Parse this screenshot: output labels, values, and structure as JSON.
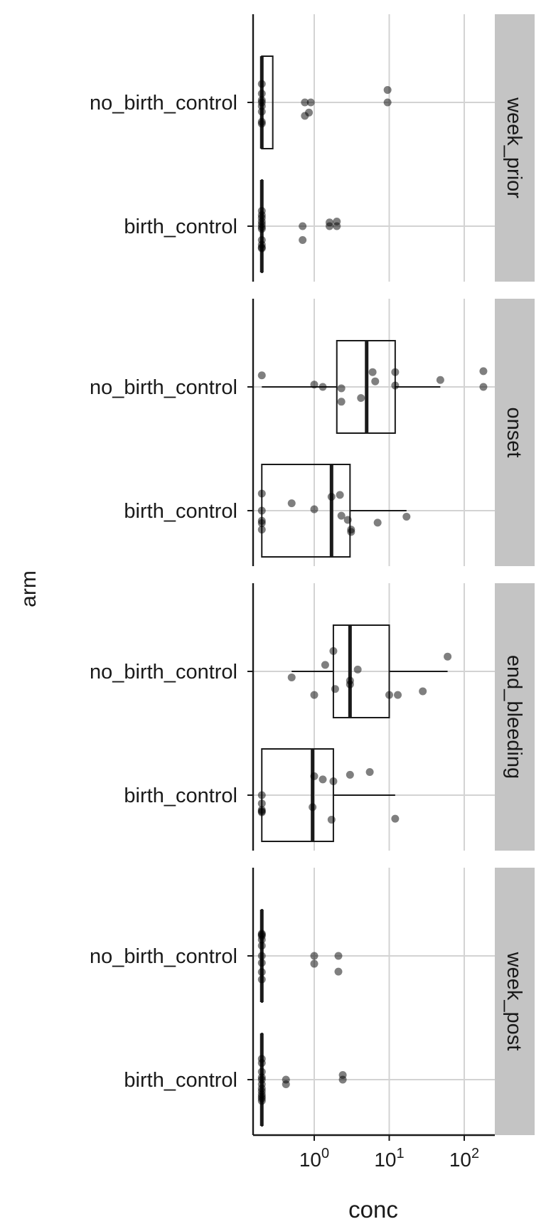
{
  "chart_data": {
    "type": "boxplot",
    "xlabel": "conc",
    "ylabel": "arm",
    "x_scale": "log10",
    "xlim": [
      0.15,
      240
    ],
    "x_ticks": [
      1,
      10,
      100
    ],
    "x_tick_labels": [
      {
        "base": "10",
        "exp": "0"
      },
      {
        "base": "10",
        "exp": "1"
      },
      {
        "base": "10",
        "exp": "2"
      }
    ],
    "categories": [
      "no_birth_control",
      "birth_control"
    ],
    "grid": "major x and y",
    "facets": [
      {
        "label": "week_prior",
        "groups": [
          {
            "arm": "no_birth_control",
            "box": {
              "lower": 0.2,
              "q1": 0.2,
              "median": 0.2,
              "q3": 0.28,
              "upper": 0.28
            },
            "points": [
              {
                "x": 9.5,
                "jitter": 0.27
              },
              {
                "x": 9.5,
                "jitter": 0.0
              },
              {
                "x": 0.75,
                "jitter": 0.0
              },
              {
                "x": 0.9,
                "jitter": 0.0
              },
              {
                "x": 0.85,
                "jitter": -0.22
              },
              {
                "x": 0.75,
                "jitter": -0.29
              },
              {
                "x": 0.2,
                "jitter": 0.4
              },
              {
                "x": 0.2,
                "jitter": 0.19
              },
              {
                "x": 0.2,
                "jitter": 0.05
              },
              {
                "x": 0.2,
                "jitter": 0.0
              },
              {
                "x": 0.2,
                "jitter": -0.08
              },
              {
                "x": 0.2,
                "jitter": -0.2
              },
              {
                "x": 0.2,
                "jitter": -0.42
              },
              {
                "x": 0.2,
                "jitter": -0.46
              }
            ]
          },
          {
            "arm": "birth_control",
            "box": {
              "lower": 0.2,
              "q1": 0.2,
              "median": 0.2,
              "q3": 0.2,
              "upper": 0.2
            },
            "points": [
              {
                "x": 2.0,
                "jitter": 0.1
              },
              {
                "x": 1.6,
                "jitter": 0.08
              },
              {
                "x": 1.6,
                "jitter": 0.0
              },
              {
                "x": 2.0,
                "jitter": 0.0
              },
              {
                "x": 0.7,
                "jitter": 0.0
              },
              {
                "x": 0.7,
                "jitter": -0.3
              },
              {
                "x": 0.2,
                "jitter": 0.33
              },
              {
                "x": 0.2,
                "jitter": 0.24
              },
              {
                "x": 0.2,
                "jitter": 0.18
              },
              {
                "x": 0.2,
                "jitter": 0.1
              },
              {
                "x": 0.2,
                "jitter": 0.04
              },
              {
                "x": 0.2,
                "jitter": -0.02
              },
              {
                "x": 0.2,
                "jitter": -0.06
              },
              {
                "x": 0.2,
                "jitter": -0.3
              },
              {
                "x": 0.2,
                "jitter": -0.4
              },
              {
                "x": 0.2,
                "jitter": -0.46
              },
              {
                "x": 0.2,
                "jitter": -0.48
              }
            ]
          }
        ]
      },
      {
        "label": "onset",
        "groups": [
          {
            "arm": "no_birth_control",
            "box": {
              "lower": 0.2,
              "q1": 2.0,
              "median": 5.0,
              "q3": 12.0,
              "upper": 48.0
            },
            "points": [
              {
                "x": 0.2,
                "jitter": 0.25
              },
              {
                "x": 1.0,
                "jitter": 0.05
              },
              {
                "x": 1.3,
                "jitter": 0.0
              },
              {
                "x": 2.3,
                "jitter": -0.03
              },
              {
                "x": 2.3,
                "jitter": -0.32
              },
              {
                "x": 4.2,
                "jitter": -0.24
              },
              {
                "x": 6.0,
                "jitter": 0.32
              },
              {
                "x": 6.5,
                "jitter": 0.12
              },
              {
                "x": 12.0,
                "jitter": 0.32
              },
              {
                "x": 12.0,
                "jitter": 0.03
              },
              {
                "x": 48.0,
                "jitter": 0.15
              },
              {
                "x": 180.0,
                "jitter": 0.34
              },
              {
                "x": 180.0,
                "jitter": 0.0
              }
            ]
          },
          {
            "arm": "birth_control",
            "box": {
              "lower": 0.2,
              "q1": 0.2,
              "median": 1.7,
              "q3": 3.0,
              "upper": 17.0
            },
            "points": [
              {
                "x": 0.2,
                "jitter": 0.37
              },
              {
                "x": 0.2,
                "jitter": 0.0
              },
              {
                "x": 0.2,
                "jitter": -0.22
              },
              {
                "x": 0.2,
                "jitter": -0.27
              },
              {
                "x": 0.2,
                "jitter": -0.41
              },
              {
                "x": 0.5,
                "jitter": 0.16
              },
              {
                "x": 1.0,
                "jitter": 0.03
              },
              {
                "x": 1.7,
                "jitter": 0.3
              },
              {
                "x": 2.2,
                "jitter": 0.34
              },
              {
                "x": 2.3,
                "jitter": -0.11
              },
              {
                "x": 2.8,
                "jitter": -0.2
              },
              {
                "x": 3.1,
                "jitter": -0.41
              },
              {
                "x": 3.1,
                "jitter": -0.46
              },
              {
                "x": 7.0,
                "jitter": -0.26
              },
              {
                "x": 17.0,
                "jitter": -0.13
              }
            ]
          }
        ]
      },
      {
        "label": "end_bleeding",
        "groups": [
          {
            "arm": "no_birth_control",
            "box": {
              "lower": 0.5,
              "q1": 1.8,
              "median": 3.0,
              "q3": 10.0,
              "upper": 60.0
            },
            "points": [
              {
                "x": 0.5,
                "jitter": -0.13
              },
              {
                "x": 1.0,
                "jitter": -0.51
              },
              {
                "x": 1.4,
                "jitter": 0.14
              },
              {
                "x": 1.8,
                "jitter": 0.44
              },
              {
                "x": 1.9,
                "jitter": -0.38
              },
              {
                "x": 3.0,
                "jitter": -0.2
              },
              {
                "x": 3.0,
                "jitter": -0.28
              },
              {
                "x": 3.8,
                "jitter": 0.04
              },
              {
                "x": 10.0,
                "jitter": -0.51
              },
              {
                "x": 13.0,
                "jitter": -0.51
              },
              {
                "x": 28.0,
                "jitter": -0.43
              },
              {
                "x": 60.0,
                "jitter": 0.32
              }
            ]
          },
          {
            "arm": "birth_control",
            "box": {
              "lower": 0.2,
              "q1": 0.2,
              "median": 0.95,
              "q3": 1.8,
              "upper": 12.0
            },
            "points": [
              {
                "x": 1.0,
                "jitter": 0.41
              },
              {
                "x": 1.3,
                "jitter": 0.34
              },
              {
                "x": 1.8,
                "jitter": 0.3
              },
              {
                "x": 3.0,
                "jitter": 0.44
              },
              {
                "x": 5.5,
                "jitter": 0.5
              },
              {
                "x": 0.2,
                "jitter": 0.0
              },
              {
                "x": 0.2,
                "jitter": -0.18
              },
              {
                "x": 0.2,
                "jitter": -0.32
              },
              {
                "x": 0.2,
                "jitter": -0.35
              },
              {
                "x": 0.2,
                "jitter": -0.37
              },
              {
                "x": 0.95,
                "jitter": -0.26
              },
              {
                "x": 1.7,
                "jitter": -0.53
              },
              {
                "x": 12.0,
                "jitter": -0.51
              }
            ]
          }
        ]
      },
      {
        "label": "week_post",
        "groups": [
          {
            "arm": "no_birth_control",
            "box": {
              "lower": 0.2,
              "q1": 0.2,
              "median": 0.2,
              "q3": 0.2,
              "upper": 0.2
            },
            "points": [
              {
                "x": 0.2,
                "jitter": 0.48
              },
              {
                "x": 0.2,
                "jitter": 0.46
              },
              {
                "x": 0.2,
                "jitter": 0.43
              },
              {
                "x": 0.2,
                "jitter": 0.35
              },
              {
                "x": 0.2,
                "jitter": 0.22
              },
              {
                "x": 0.2,
                "jitter": 0.0
              },
              {
                "x": 0.2,
                "jitter": -0.15
              },
              {
                "x": 0.2,
                "jitter": -0.35
              },
              {
                "x": 0.2,
                "jitter": -0.51
              },
              {
                "x": 1.0,
                "jitter": 0.0
              },
              {
                "x": 2.1,
                "jitter": 0.0
              },
              {
                "x": 1.0,
                "jitter": -0.17
              },
              {
                "x": 2.1,
                "jitter": -0.34
              }
            ]
          },
          {
            "arm": "birth_control",
            "box": {
              "lower": 0.2,
              "q1": 0.2,
              "median": 0.2,
              "q3": 0.2,
              "upper": 0.2
            },
            "points": [
              {
                "x": 0.2,
                "jitter": 0.45
              },
              {
                "x": 0.2,
                "jitter": 0.36
              },
              {
                "x": 0.2,
                "jitter": 0.17
              },
              {
                "x": 0.2,
                "jitter": 0.05
              },
              {
                "x": 0.2,
                "jitter": 0.0
              },
              {
                "x": 0.2,
                "jitter": -0.1
              },
              {
                "x": 0.2,
                "jitter": -0.19
              },
              {
                "x": 0.2,
                "jitter": -0.25
              },
              {
                "x": 0.2,
                "jitter": -0.32
              },
              {
                "x": 0.2,
                "jitter": -0.37
              },
              {
                "x": 0.2,
                "jitter": -0.41
              },
              {
                "x": 0.2,
                "jitter": -0.46
              },
              {
                "x": 0.42,
                "jitter": 0.0
              },
              {
                "x": 0.42,
                "jitter": -0.1
              },
              {
                "x": 2.4,
                "jitter": 0.1
              },
              {
                "x": 2.4,
                "jitter": 0.0
              }
            ]
          }
        ]
      }
    ]
  }
}
